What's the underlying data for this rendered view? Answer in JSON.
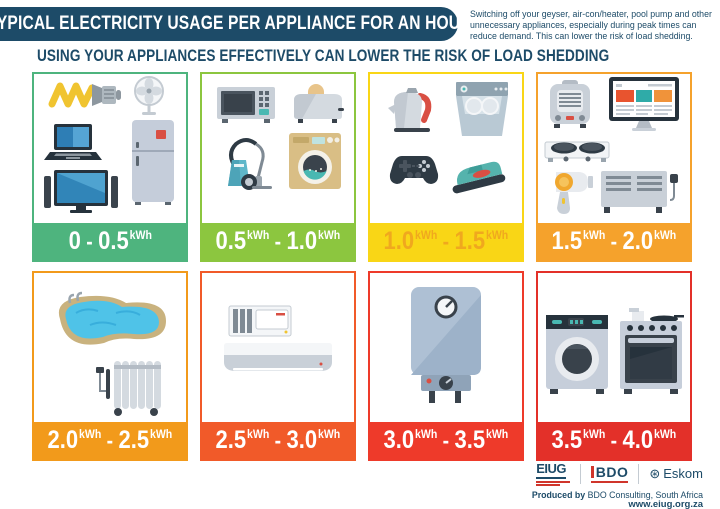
{
  "header": {
    "title": "TYPICAL ELECTRICITY USAGE PER APPLIANCE FOR AN HOUR",
    "note": "Switching off your geyser, air-con/heater, pool pump and other unnecessary appliances, especially during peak times can reduce demand. This can lower the risk of load shedding.",
    "subtitle": "USING YOUR APPLIANCES EFFECTIVELY CAN LOWER THE RISK OF LOAD SHEDDING"
  },
  "colors": {
    "navy": "#1D4B68",
    "logo_red": "#D0352B"
  },
  "cells": [
    {
      "range": {
        "start": "0",
        "start_unit": "",
        "end": "0.5",
        "end_unit": "kWh"
      },
      "label_bg": "#4EB47E",
      "label_text_color": "#FFFFFF",
      "border_color": "#4EB47E",
      "appliances": [
        "cfl-bulb",
        "fan",
        "laptop",
        "fridge",
        "tv"
      ]
    },
    {
      "range": {
        "start": "0.5",
        "start_unit": "kWh",
        "end": "1.0",
        "end_unit": "kWh"
      },
      "label_bg": "#8CC63F",
      "label_text_color": "#FFFFFF",
      "border_color": "#8CC63F",
      "appliances": [
        "microwave",
        "toaster",
        "vacuum-cleaner",
        "washing-machine"
      ]
    },
    {
      "range": {
        "start": "1.0",
        "start_unit": "kWh",
        "end": "1.5",
        "end_unit": "kWh"
      },
      "label_bg": "#F9D616",
      "label_text_color": "#F0A81E",
      "border_color": "#F9D616",
      "appliances": [
        "kettle",
        "dishwasher",
        "game-controller",
        "iron"
      ]
    },
    {
      "range": {
        "start": "1.5",
        "start_unit": "kWh",
        "end": "2.0",
        "end_unit": "kWh"
      },
      "label_bg": "#F5A22C",
      "label_text_color": "#FFFFFF",
      "border_color": "#F5A22C",
      "appliances": [
        "fan-heater",
        "desktop-computer",
        "hot-plate-stove",
        "hair-dryer",
        "panel-heater"
      ]
    },
    {
      "range": {
        "start": "2.0",
        "start_unit": "kWh",
        "end": "2.5",
        "end_unit": "kWh"
      },
      "label_bg": "#F29A1B",
      "label_text_color": "#FFFFFF",
      "border_color": "#F29A1B",
      "appliances": [
        "swimming-pool-pump",
        "oil-heater"
      ]
    },
    {
      "range": {
        "start": "2.5",
        "start_unit": "kWh",
        "end": "3.0",
        "end_unit": "kWh"
      },
      "label_bg": "#F15A29",
      "label_text_color": "#FFFFFF",
      "border_color": "#F15A29",
      "appliances": [
        "air-conditioner-outdoor-unit",
        "air-conditioner-indoor-unit"
      ]
    },
    {
      "range": {
        "start": "3.0",
        "start_unit": "kWh",
        "end": "3.5",
        "end_unit": "kWh"
      },
      "label_bg": "#EE3A2A",
      "label_text_color": "#FFFFFF",
      "border_color": "#EE3A2A",
      "appliances": [
        "geyser"
      ]
    },
    {
      "range": {
        "start": "3.5",
        "start_unit": "kWh",
        "end": "4.0",
        "end_unit": "kWh"
      },
      "label_bg": "#E33029",
      "label_text_color": "#FFFFFF",
      "border_color": "#E33029",
      "appliances": [
        "tumble-dryer",
        "oven-stove"
      ]
    }
  ],
  "footer": {
    "eiug_label": "EIUG",
    "bdo_label": "BDO",
    "eskom_label": "Eskom",
    "produced_by_bold": "Produced by",
    "produced_by_rest": " BDO Consulting, South Africa",
    "website": "www.eiug.org.za"
  }
}
